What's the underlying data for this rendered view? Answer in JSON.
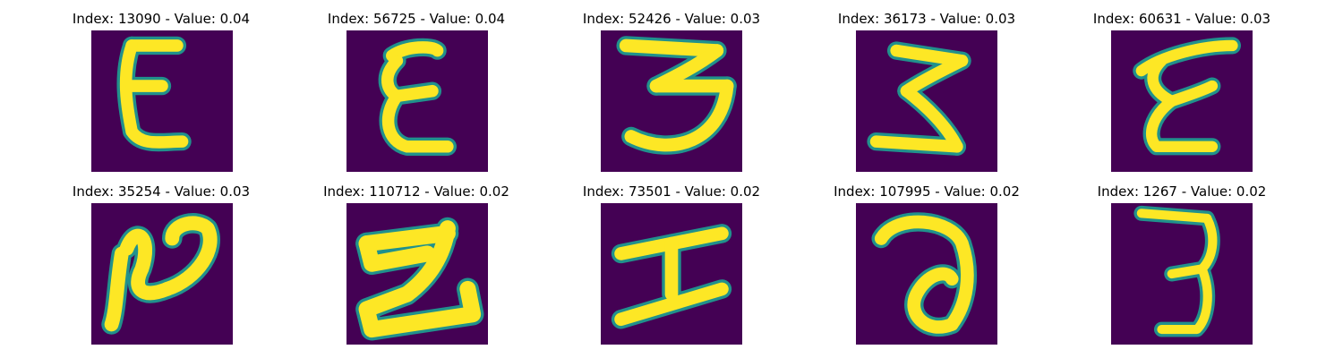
{
  "chart_data": {
    "type": "image-grid",
    "layout": {
      "rows": 2,
      "cols": 5
    },
    "colormap": {
      "low": "#440154",
      "mid": "#21918c",
      "high": "#fde725"
    },
    "panels": [
      {
        "title": "Index: 13090 - Value: 0.04",
        "index": 13090,
        "value": 0.04,
        "glyph": "E"
      },
      {
        "title": "Index: 56725 - Value: 0.04",
        "index": 56725,
        "value": 0.04,
        "glyph": "E"
      },
      {
        "title": "Index: 52426 - Value: 0.03",
        "index": 52426,
        "value": 0.03,
        "glyph": "3"
      },
      {
        "title": "Index: 36173 - Value: 0.03",
        "index": 36173,
        "value": 0.03,
        "glyph": "Z"
      },
      {
        "title": "Index: 60631 - Value: 0.03",
        "index": 60631,
        "value": 0.03,
        "glyph": "E"
      },
      {
        "title": "Index: 35254 - Value: 0.03",
        "index": 35254,
        "value": 0.03,
        "glyph": "2"
      },
      {
        "title": "Index: 110712 - Value: 0.02",
        "index": 110712,
        "value": 0.02,
        "glyph": "Z"
      },
      {
        "title": "Index: 73501 - Value: 0.02",
        "index": 73501,
        "value": 0.02,
        "glyph": "H"
      },
      {
        "title": "Index: 107995 - Value: 0.02",
        "index": 107995,
        "value": 0.02,
        "glyph": "a"
      },
      {
        "title": "Index: 1267 - Value: 0.02",
        "index": 1267,
        "value": 0.02,
        "glyph": "3"
      }
    ]
  }
}
